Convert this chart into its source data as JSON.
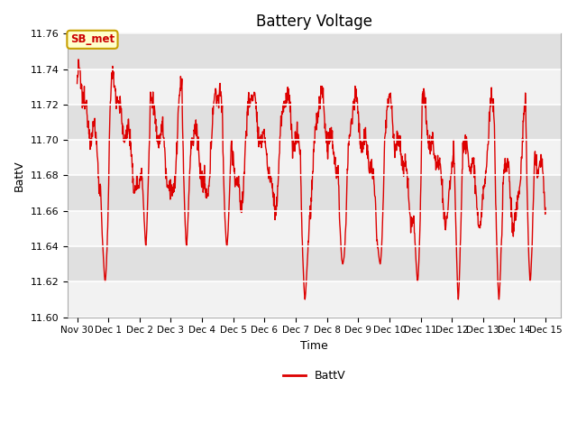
{
  "title": "Battery Voltage",
  "xlabel": "Time",
  "ylabel": "BattV",
  "ylim": [
    11.6,
    11.76
  ],
  "yticks": [
    11.6,
    11.62,
    11.64,
    11.66,
    11.68,
    11.7,
    11.72,
    11.74,
    11.76
  ],
  "xtick_labels": [
    "Nov 30",
    "Dec 1",
    "Dec 2",
    "Dec 3",
    "Dec 4",
    "Dec 5",
    "Dec 6",
    "Dec 7",
    "Dec 8",
    "Dec 9",
    "Dec 10",
    "Dec 11",
    "Dec 12",
    "Dec 13",
    "Dec 14",
    "Dec 15"
  ],
  "line_color": "#dd0000",
  "line_width": 1.0,
  "legend_label": "BattV",
  "plot_bg_color": "#e8e8e8",
  "band_color_light": "#f2f2f2",
  "band_color_dark": "#e0e0e0",
  "annotation_text": "SB_met",
  "annotation_bg": "#ffffcc",
  "annotation_border": "#c8a000",
  "title_fontsize": 12,
  "axis_label_fontsize": 9,
  "tick_fontsize": 8
}
